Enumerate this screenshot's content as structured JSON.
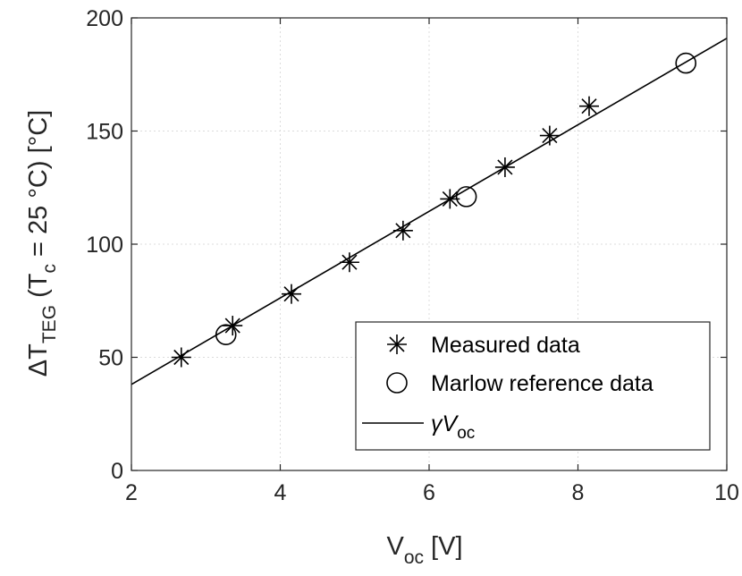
{
  "chart_data": {
    "type": "scatter",
    "xlabel": {
      "main": "V",
      "sub": "oc",
      "unit": " [V]"
    },
    "ylabel": {
      "delta": "Δ",
      "main": "T",
      "sub": "TEG",
      "middle": " (T",
      "sub2": "c",
      "suffix": " = 25 °C) [°C]"
    },
    "xlim": [
      2,
      10
    ],
    "ylim": [
      0,
      200
    ],
    "xticks": [
      2,
      4,
      6,
      8,
      10
    ],
    "yticks": [
      0,
      50,
      100,
      150,
      200
    ],
    "grid": true,
    "legend_position": "bottom-right",
    "series": [
      {
        "name": "Measured data",
        "marker": "star",
        "x": [
          2.67,
          3.36,
          4.15,
          4.93,
          5.65,
          6.28,
          7.02,
          7.62,
          8.15
        ],
        "y": [
          50,
          64,
          78,
          92,
          106,
          120,
          134,
          148,
          161
        ]
      },
      {
        "name": "Marlow reference data",
        "marker": "circle",
        "x": [
          3.27,
          6.5,
          9.45
        ],
        "y": [
          60,
          121,
          180
        ]
      },
      {
        "name": "γV",
        "name_sub": "oc",
        "marker": "line",
        "x": [
          2,
          10
        ],
        "y": [
          38,
          191
        ]
      }
    ]
  }
}
